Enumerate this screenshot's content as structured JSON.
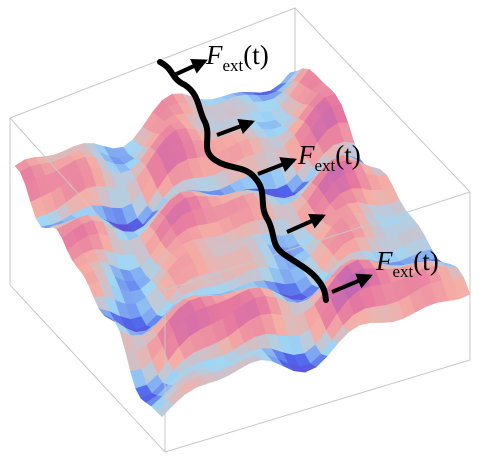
{
  "labels": [
    {
      "symbol": "F",
      "subscript": "ext",
      "argument": "(t)"
    },
    {
      "symbol": "F",
      "subscript": "ext",
      "argument": "(t)"
    },
    {
      "symbol": "F",
      "subscript": "ext",
      "argument": "(t)"
    }
  ]
}
